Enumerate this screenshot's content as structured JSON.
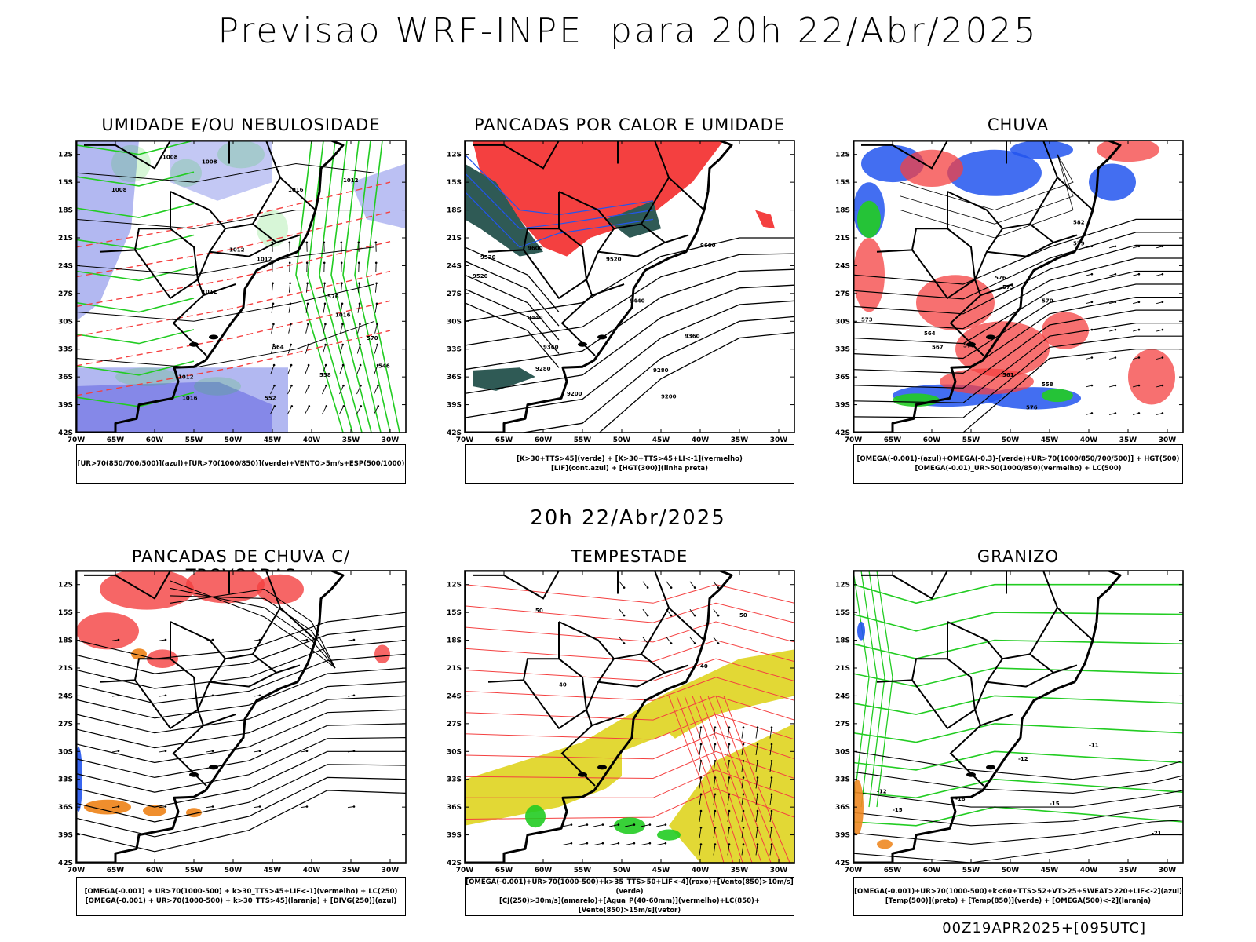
{
  "header": {
    "title": "Previsao WRF-INPE  para 20h 22/Abr/2025"
  },
  "middle_date": "20h 22/Abr/2025",
  "footer_run": "00Z19APR2025+[095UTC]",
  "axes": {
    "lat_labels": [
      "12S",
      "15S",
      "18S",
      "21S",
      "24S",
      "27S",
      "30S",
      "33S",
      "36S",
      "39S",
      "42S"
    ],
    "lon_labels": [
      "70W",
      "65W",
      "60W",
      "55W",
      "50W",
      "45W",
      "40W",
      "35W",
      "30W"
    ]
  },
  "colors": {
    "blue": "#2255ee",
    "lavender": "#aab0f0",
    "red": "#f44040",
    "green": "#22cc22",
    "dark_teal": "#2f5a55",
    "orange": "#ee8822",
    "yellow": "#e0d62a",
    "black": "#000000"
  },
  "panels": [
    {
      "title": "UMIDADE E/OU NEBULOSIDADE",
      "legend": [
        "[UR>70(850/700/500)](azul)+[UR>70(1000/850)](verde)+VENTO>5m/s+ESP(500/1000)"
      ],
      "contour_labels": [
        "1008",
        "1008",
        "1008",
        "1012",
        "1012",
        "1016",
        "1012",
        "1012",
        "1016",
        "1012",
        "1016",
        "576",
        "570",
        "564",
        "558",
        "552",
        "546"
      ]
    },
    {
      "title": "PANCADAS POR CALOR E UMIDADE",
      "legend": [
        "[K>30+TTS>45](verde) + [K>30+TTS>45+LI<-1](vermelho)",
        "[LIF](cont.azul) + [HGT(300)](linha preta)"
      ],
      "contour_labels": [
        "9600",
        "9600",
        "9520",
        "9520",
        "9520",
        "9440",
        "9440",
        "9360",
        "9360",
        "9280",
        "9280",
        "9200",
        "9200"
      ]
    },
    {
      "title": "CHUVA",
      "legend": [
        "[OMEGA(-0.001)-(azul)+OMEGA(-0.3)-(verde)+UR>70(1000/850/700/500)] + HGT(500)",
        "[OMEGA(-0.01)_UR>50(1000/850)(vermelho) + LC(500)"
      ],
      "contour_labels": [
        "582",
        "579",
        "576",
        "573",
        "570",
        "567",
        "564",
        "561",
        "558",
        "576",
        "573",
        "570"
      ]
    },
    {
      "title": "PANCADAS DE CHUVA C/ TROVOADAS",
      "legend": [
        "[OMEGA(-0.001) + UR>70(1000-500) + k>30_TTS>45+LIF<-1](vermelho) + LC(250)",
        "[OMEGA(-0.001) + UR>70(1000-500) + k>30_TTS>45](laranja) + [DIVG(250)](azul)"
      ],
      "contour_labels": []
    },
    {
      "title": "TEMPESTADE",
      "legend": [
        "[OMEGA(-0.001)+UR>70(1000-500)+k>35_TTS>50+LIF<-4](roxo)+[Vento(850)>10m/s](verde)",
        "[CJ(250)>30m/s](amarelo)+[Agua_P(40-60mm)](vermelho)+LC(850)+[Vento(850)>15m/s](vetor)"
      ],
      "contour_labels": [
        "50",
        "50",
        "40",
        "40"
      ]
    },
    {
      "title": "GRANIZO",
      "legend": [
        "[OMEGA(-0.001)+UR>70(1000-500)+k<60+TTS>52+VT>25+SWEAT>220+LIF<-2](azul)",
        "[Temp(500)](preto) + [Temp(850)](verde) + [OMEGA(500)<-2](laranja)"
      ],
      "contour_labels": [
        "-12",
        "-12",
        "-15",
        "-15",
        "-18",
        "-21",
        "-11"
      ]
    }
  ]
}
